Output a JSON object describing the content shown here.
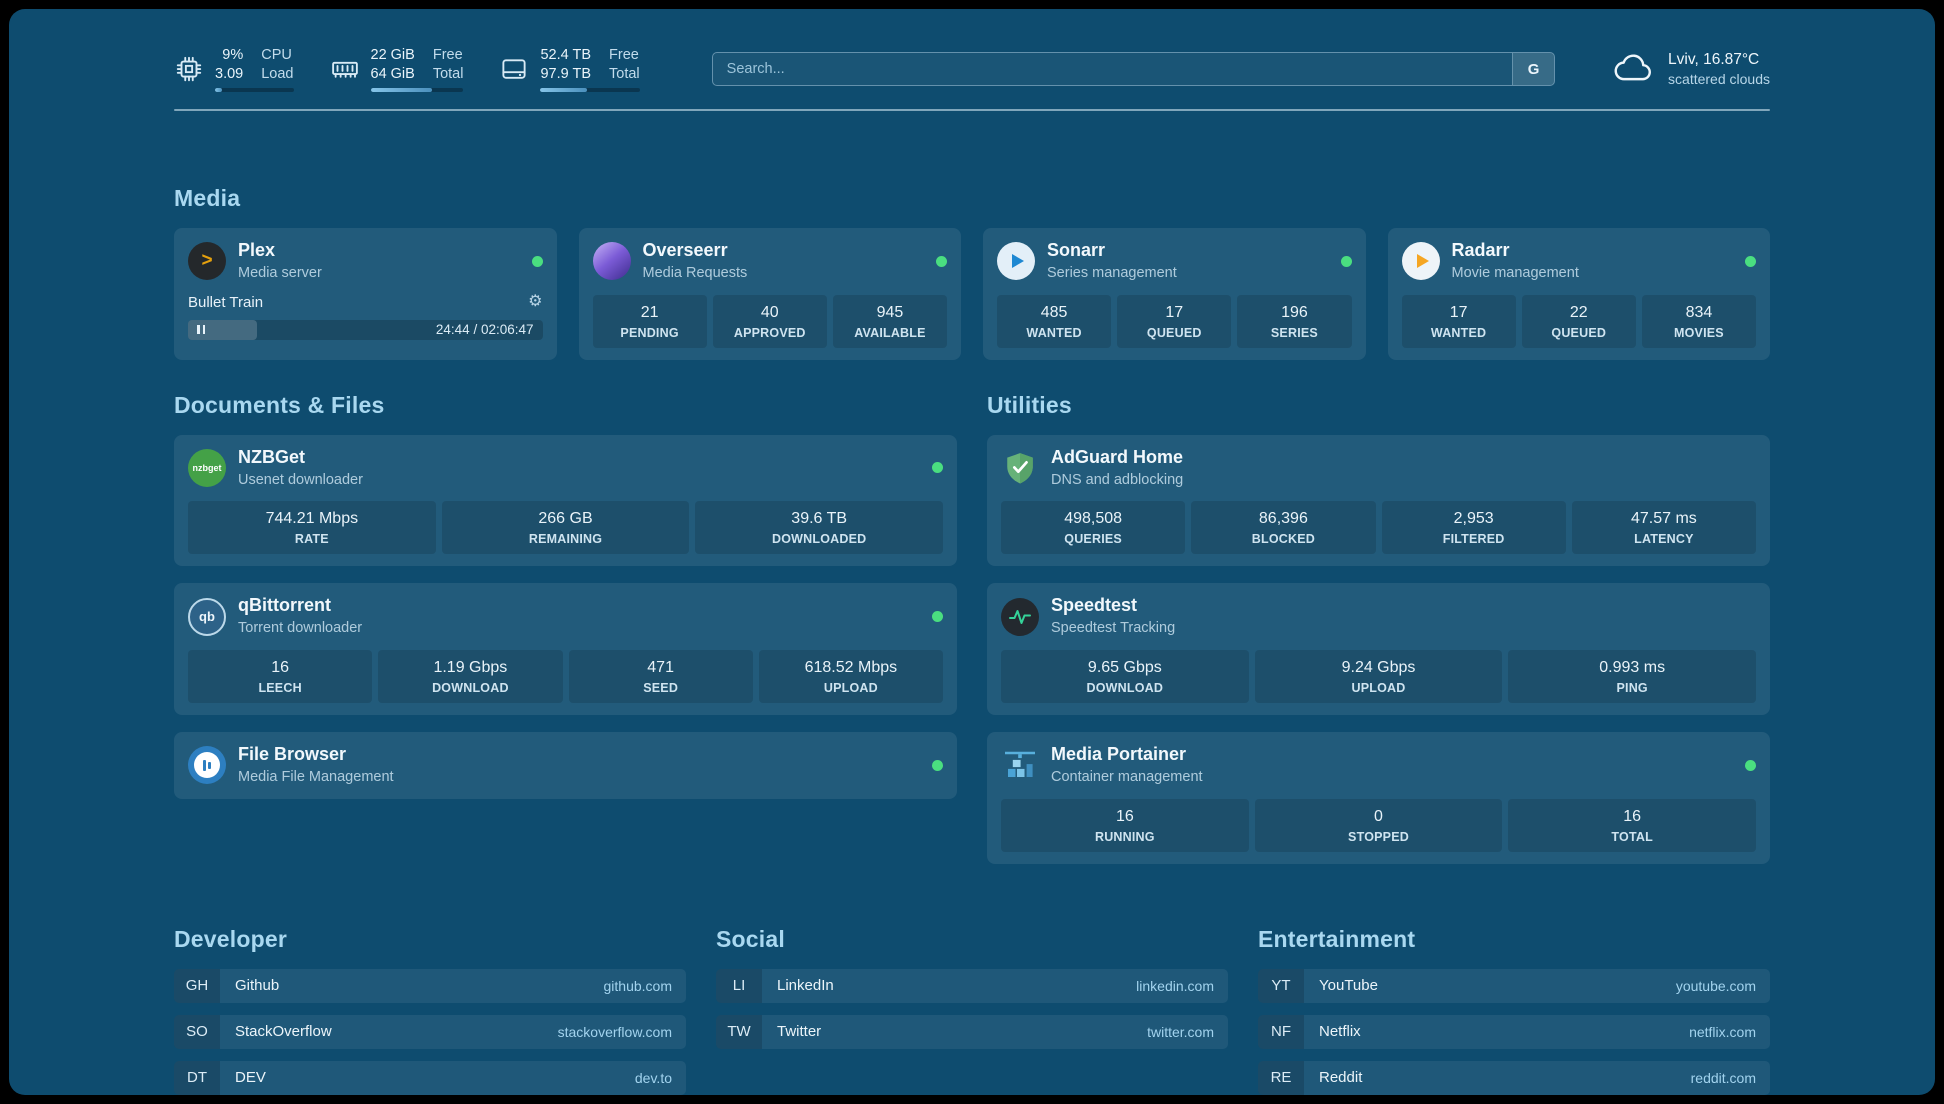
{
  "header": {
    "resources": [
      {
        "icon": "cpu-icon",
        "rows": [
          {
            "value": "9%",
            "label": "CPU"
          },
          {
            "value": "3.09",
            "label": "Load"
          }
        ],
        "progress": 9
      },
      {
        "icon": "memory-icon",
        "rows": [
          {
            "value": "22 GiB",
            "label": "Free"
          },
          {
            "value": "64 GiB",
            "label": "Total"
          }
        ],
        "progress": 66
      },
      {
        "icon": "disk-icon",
        "rows": [
          {
            "value": "52.4 TB",
            "label": "Free"
          },
          {
            "value": "97.9 TB",
            "label": "Total"
          }
        ],
        "progress": 47
      }
    ],
    "search": {
      "placeholder": "Search...",
      "button_label": "G"
    },
    "weather": {
      "icon": "cloud-icon",
      "location": "Lviv, 16.87°C",
      "condition": "scattered clouds"
    }
  },
  "media": {
    "title": "Media",
    "plex": {
      "title": "Plex",
      "subtitle": "Media server",
      "icon_label": ">",
      "now_playing": "Bullet Train",
      "time": "24:44 / 02:06:47",
      "progress": 19.5
    },
    "overseerr": {
      "title": "Overseerr",
      "subtitle": "Media Requests",
      "stats": [
        {
          "value": "21",
          "label": "PENDING"
        },
        {
          "value": "40",
          "label": "APPROVED"
        },
        {
          "value": "945",
          "label": "AVAILABLE"
        }
      ]
    },
    "sonarr": {
      "title": "Sonarr",
      "subtitle": "Series management",
      "stats": [
        {
          "value": "485",
          "label": "WANTED"
        },
        {
          "value": "17",
          "label": "QUEUED"
        },
        {
          "value": "196",
          "label": "SERIES"
        }
      ]
    },
    "radarr": {
      "title": "Radarr",
      "subtitle": "Movie management",
      "stats": [
        {
          "value": "17",
          "label": "WANTED"
        },
        {
          "value": "22",
          "label": "QUEUED"
        },
        {
          "value": "834",
          "label": "MOVIES"
        }
      ]
    }
  },
  "documents": {
    "title": "Documents & Files",
    "nzbget": {
      "title": "NZBGet",
      "subtitle": "Usenet downloader",
      "icon_label": "nzbget",
      "stats": [
        {
          "value": "744.21 Mbps",
          "label": "RATE"
        },
        {
          "value": "266 GB",
          "label": "REMAINING"
        },
        {
          "value": "39.6 TB",
          "label": "DOWNLOADED"
        }
      ]
    },
    "qbittorrent": {
      "title": "qBittorrent",
      "subtitle": "Torrent downloader",
      "icon_label": "qb",
      "stats": [
        {
          "value": "16",
          "label": "LEECH"
        },
        {
          "value": "1.19 Gbps",
          "label": "DOWNLOAD"
        },
        {
          "value": "471",
          "label": "SEED"
        },
        {
          "value": "618.52 Mbps",
          "label": "UPLOAD"
        }
      ]
    },
    "filebrowser": {
      "title": "File Browser",
      "subtitle": "Media File Management"
    }
  },
  "utilities": {
    "title": "Utilities",
    "adguard": {
      "title": "AdGuard Home",
      "subtitle": "DNS and adblocking",
      "stats": [
        {
          "value": "498,508",
          "label": "QUERIES"
        },
        {
          "value": "86,396",
          "label": "BLOCKED"
        },
        {
          "value": "2,953",
          "label": "FILTERED"
        },
        {
          "value": "47.57 ms",
          "label": "LATENCY"
        }
      ]
    },
    "speedtest": {
      "title": "Speedtest",
      "subtitle": "Speedtest Tracking",
      "stats": [
        {
          "value": "9.65 Gbps",
          "label": "DOWNLOAD"
        },
        {
          "value": "9.24 Gbps",
          "label": "UPLOAD"
        },
        {
          "value": "0.993 ms",
          "label": "PING"
        }
      ]
    },
    "portainer": {
      "title": "Media Portainer",
      "subtitle": "Container management",
      "stats": [
        {
          "value": "16",
          "label": "RUNNING"
        },
        {
          "value": "0",
          "label": "STOPPED"
        },
        {
          "value": "16",
          "label": "TOTAL"
        }
      ]
    }
  },
  "bookmarks": {
    "developer": {
      "title": "Developer",
      "items": [
        {
          "abbr": "GH",
          "name": "Github",
          "url": "github.com"
        },
        {
          "abbr": "SO",
          "name": "StackOverflow",
          "url": "stackoverflow.com"
        },
        {
          "abbr": "DT",
          "name": "DEV",
          "url": "dev.to"
        }
      ]
    },
    "social": {
      "title": "Social",
      "items": [
        {
          "abbr": "LI",
          "name": "LinkedIn",
          "url": "linkedin.com"
        },
        {
          "abbr": "TW",
          "name": "Twitter",
          "url": "twitter.com"
        }
      ]
    },
    "entertainment": {
      "title": "Entertainment",
      "items": [
        {
          "abbr": "YT",
          "name": "YouTube",
          "url": "youtube.com"
        },
        {
          "abbr": "NF",
          "name": "Netflix",
          "url": "netflix.com"
        },
        {
          "abbr": "RE",
          "name": "Reddit",
          "url": "reddit.com"
        }
      ]
    }
  },
  "colors": {
    "status_green": "#4ade80",
    "accent": "#a9d8f0"
  }
}
